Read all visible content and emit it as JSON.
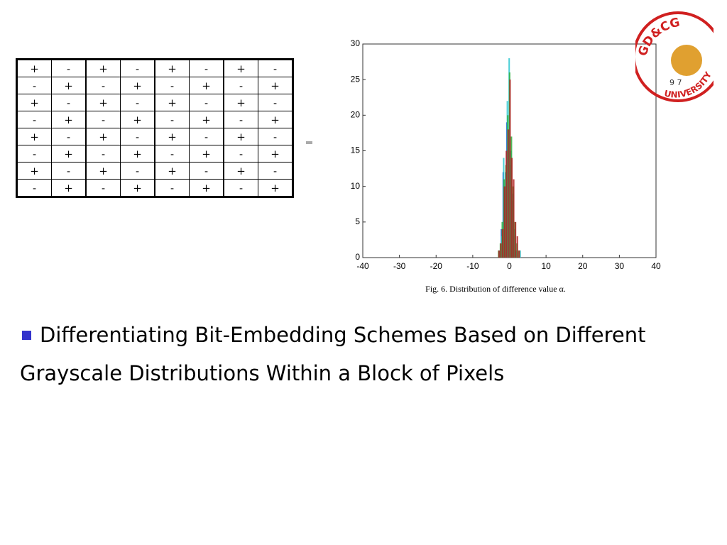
{
  "table": {
    "rows": [
      [
        "+",
        "-",
        "+",
        "-",
        "+",
        "-",
        "+",
        "-"
      ],
      [
        "-",
        "+",
        "-",
        "+",
        "-",
        "+",
        "-",
        "+"
      ],
      [
        "+",
        "-",
        "+",
        "-",
        "+",
        "-",
        "+",
        "-"
      ],
      [
        "-",
        "+",
        "-",
        "+",
        "-",
        "+",
        "-",
        "+"
      ],
      [
        "+",
        "-",
        "+",
        "-",
        "+",
        "-",
        "+",
        "-"
      ],
      [
        "-",
        "+",
        "-",
        "+",
        "-",
        "+",
        "-",
        "+"
      ],
      [
        "+",
        "-",
        "+",
        "-",
        "+",
        "-",
        "+",
        "-"
      ],
      [
        "-",
        "+",
        "-",
        "+",
        "-",
        "+",
        "-",
        "+"
      ]
    ]
  },
  "chart_data": {
    "type": "histogram",
    "x": [
      -3,
      -2.5,
      -2,
      -1.5,
      -1,
      -0.5,
      0,
      0.5,
      1,
      1.5,
      2,
      2.5,
      3
    ],
    "series": [
      {
        "color": "#1f3fd0",
        "values": [
          0,
          1,
          4,
          12,
          10,
          19,
          18,
          13,
          8,
          3,
          1,
          0,
          0
        ]
      },
      {
        "color": "#2fc8d0",
        "values": [
          0,
          1,
          3,
          14,
          12,
          22,
          28,
          15,
          9,
          4,
          1,
          0,
          1
        ]
      },
      {
        "color": "#2fb040",
        "values": [
          1,
          2,
          5,
          11,
          13,
          20,
          26,
          17,
          10,
          5,
          2,
          1,
          0
        ]
      },
      {
        "color": "#b02020",
        "values": [
          1,
          2,
          4,
          10,
          15,
          18,
          25,
          14,
          11,
          5,
          3,
          1,
          0
        ]
      }
    ],
    "xlim": [
      -40,
      40
    ],
    "xticks": [
      -40,
      -30,
      -20,
      -10,
      0,
      10,
      20,
      30,
      40
    ],
    "ylim": [
      0,
      30
    ],
    "yticks": [
      0,
      5,
      10,
      15,
      20,
      25,
      30
    ],
    "caption": "Fig. 6.   Distribution of difference value α."
  },
  "bullet": "Differentiating Bit-Embedding Schemes Based on Different Grayscale Distributions Within a Block of Pixels",
  "logo": {
    "top": "GD&CG",
    "year": "9 7",
    "bottom": "UNIVERSITY"
  }
}
